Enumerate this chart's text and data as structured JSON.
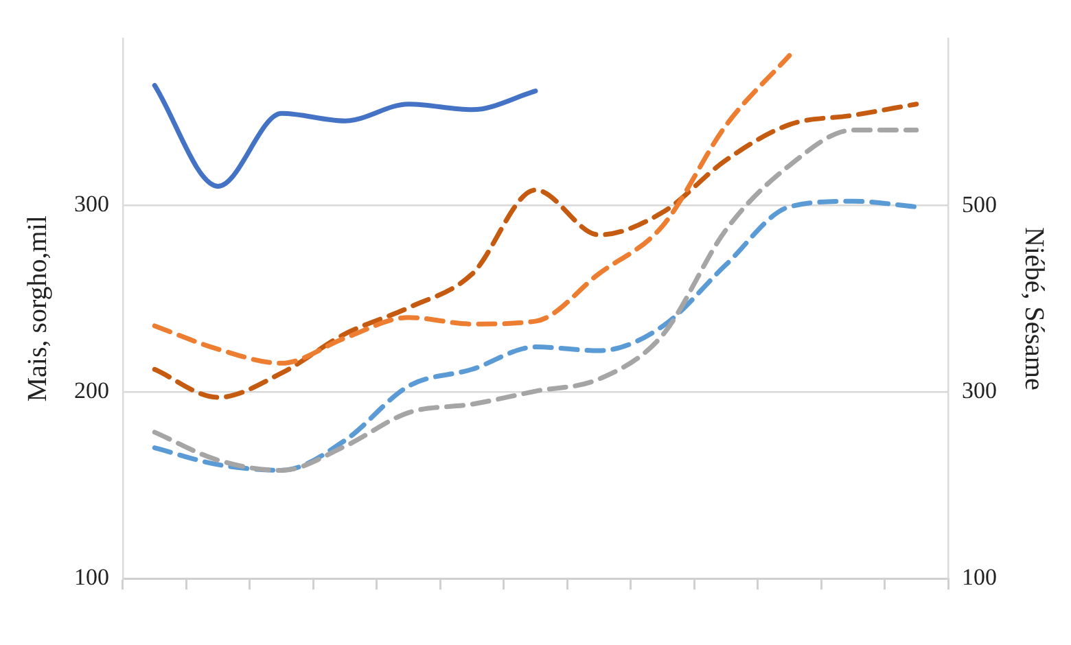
{
  "chart_data": {
    "type": "line",
    "ylabel": "Mais, sorgho,mil",
    "y2label": "Niébé, Sésame",
    "categories": [
      null,
      null,
      null,
      null,
      null,
      null,
      null,
      null,
      null,
      null,
      null,
      null,
      null
    ],
    "ylim": [
      100,
      389
    ],
    "yticks": [
      100,
      200,
      300
    ],
    "y2lim": [
      100,
      679
    ],
    "y2ticks": [
      100,
      300,
      500
    ],
    "grid": "y",
    "legend": false,
    "marker": "none",
    "series": [
      {
        "color": "#4472c4",
        "line_style": "solid",
        "values": [
          364,
          310,
          349,
          345,
          354,
          351,
          361,
          null,
          null,
          null,
          null,
          null,
          null
        ]
      },
      {
        "color": "#ed7d31",
        "line_style": "dashed",
        "axis": "y2",
        "values": [
          371,
          346,
          331,
          358,
          380,
          373,
          376,
          427,
          478,
          586,
          661,
          null,
          null
        ]
      },
      {
        "color": "#c55a11",
        "line_style": "dashed",
        "values": [
          212,
          197,
          210,
          231,
          245,
          263,
          308,
          284,
          296,
          324,
          343,
          348,
          354
        ]
      },
      {
        "color": "#a5a5a5",
        "line_style": "dashed",
        "axis": "y2",
        "values": [
          257,
          227,
          216,
          242,
          278,
          287,
          301,
          314,
          361,
          474,
          543,
          581,
          581
        ]
      },
      {
        "color": "#5b9bd5",
        "line_style": "dashed",
        "values": [
          170,
          161,
          158,
          174,
          203,
          212,
          224,
          222,
          235,
          268,
          299,
          302,
          299
        ]
      }
    ]
  }
}
